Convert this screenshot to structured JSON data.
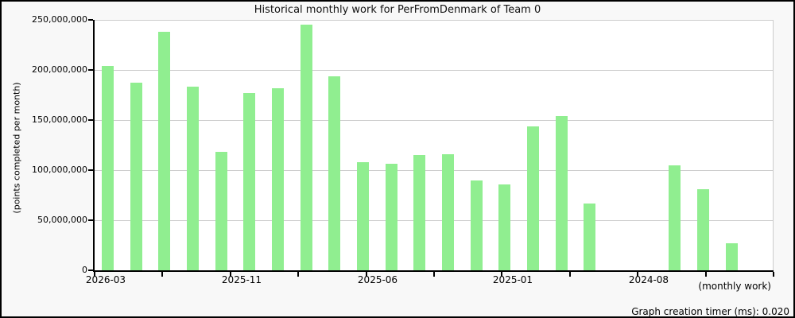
{
  "title": "Historical monthly work for PerFromDenmark of Team 0",
  "footer": {
    "timer_text": "Graph creation timer (ms): 0.020"
  },
  "chart_data": {
    "type": "bar",
    "title": "Historical monthly work for PerFromDenmark of Team 0",
    "xlabel": "(monthly work)",
    "ylabel": "(points completed per month)",
    "ylim": [
      0,
      250000000
    ],
    "y_ticks": [
      0,
      50000000,
      100000000,
      150000000,
      200000000,
      250000000
    ],
    "x_tick_labels": [
      "2026-03",
      "2025-11",
      "2025-06",
      "2025-01",
      "2024-08"
    ],
    "grid": true,
    "legend": "none",
    "bar_color": "#90EE90",
    "background_color": "#f8f8f8",
    "plot_background_color": "#ffffff",
    "categories": [
      "2026-03",
      "2026-02",
      "2026-01",
      "2025-12",
      "2025-11",
      "2025-10",
      "2025-09",
      "2025-08",
      "2025-07",
      "2025-06",
      "2025-05",
      "2025-04",
      "2025-03",
      "2025-02",
      "2025-01",
      "2024-12",
      "2024-11",
      "2024-10",
      "2024-09",
      "2024-08",
      "2024-07",
      "2024-06",
      "2024-05"
    ],
    "values": [
      204000000,
      187000000,
      238000000,
      183000000,
      118000000,
      177000000,
      182000000,
      245000000,
      194000000,
      108000000,
      106000000,
      115000000,
      116000000,
      90000000,
      86000000,
      144000000,
      154000000,
      67000000,
      0,
      0,
      105000000,
      81000000,
      27000000
    ]
  }
}
